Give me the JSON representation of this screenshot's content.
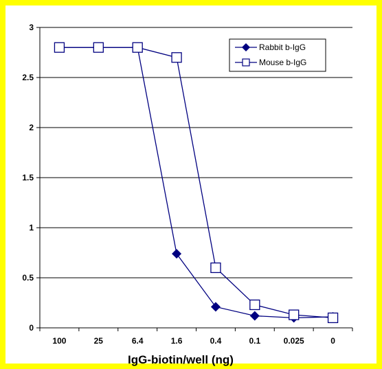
{
  "chart_data": {
    "type": "line",
    "title": "",
    "xlabel": "IgG-biotin/well (ng)",
    "ylabel": "",
    "categories": [
      "100",
      "25",
      "6.4",
      "1.6",
      "0.4",
      "0.1",
      "0.025",
      "0"
    ],
    "ylim": [
      0,
      3
    ],
    "yticks": [
      "0",
      "0.5",
      "1",
      "1.5",
      "2",
      "2.5",
      "3"
    ],
    "grid": true,
    "legend_position": "top-right",
    "series": [
      {
        "name": "Rabbit b-IgG",
        "marker": "diamond-filled",
        "color": "#000080",
        "values": [
          2.8,
          2.8,
          2.8,
          0.74,
          0.21,
          0.12,
          0.1,
          0.11
        ]
      },
      {
        "name": "Mouse b-IgG",
        "marker": "square-open",
        "color": "#000080",
        "values": [
          2.8,
          2.8,
          2.8,
          2.7,
          0.6,
          0.23,
          0.13,
          0.1
        ]
      }
    ]
  },
  "colors": {
    "frame": "#FFFF00",
    "series_line": "#000080",
    "grid": "#000000"
  }
}
